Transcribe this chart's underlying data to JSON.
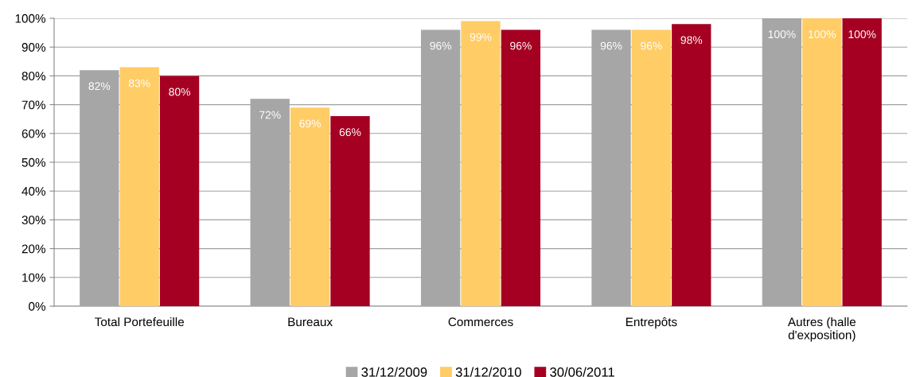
{
  "chart_data": {
    "type": "bar",
    "categories": [
      "Total Portefeuille",
      "Bureaux",
      "Commerces",
      "Entrepôts",
      "Autres (halle\nd'exposition)"
    ],
    "series": [
      {
        "name": "31/12/2009",
        "color": "#a6a6a6",
        "values": [
          82,
          72,
          96,
          96,
          100
        ],
        "value_labels": [
          "82%",
          "72%",
          "96%",
          "96%",
          "100%"
        ]
      },
      {
        "name": "31/12/2010",
        "color": "#ffcc66",
        "values": [
          83,
          69,
          99,
          96,
          100
        ],
        "value_labels": [
          "83%",
          "69%",
          "99%",
          "96%",
          "100%"
        ]
      },
      {
        "name": "30/06/2011",
        "color": "#a50021",
        "values": [
          80,
          66,
          96,
          98,
          100
        ],
        "value_labels": [
          "80%",
          "66%",
          "96%",
          "98%",
          "100%"
        ]
      }
    ],
    "ylim": [
      0,
      100
    ],
    "yticks": [
      {
        "value": 0,
        "label": "0%"
      },
      {
        "value": 10,
        "label": "10%"
      },
      {
        "value": 20,
        "label": "20%"
      },
      {
        "value": 30,
        "label": "30%"
      },
      {
        "value": 40,
        "label": "40%"
      },
      {
        "value": 50,
        "label": "50%"
      },
      {
        "value": 60,
        "label": "60%"
      },
      {
        "value": 70,
        "label": "70%"
      },
      {
        "value": 80,
        "label": "80%"
      },
      {
        "value": 90,
        "label": "90%"
      },
      {
        "value": 100,
        "label": "100%"
      }
    ],
    "grid": "y",
    "legend": "bottom"
  }
}
